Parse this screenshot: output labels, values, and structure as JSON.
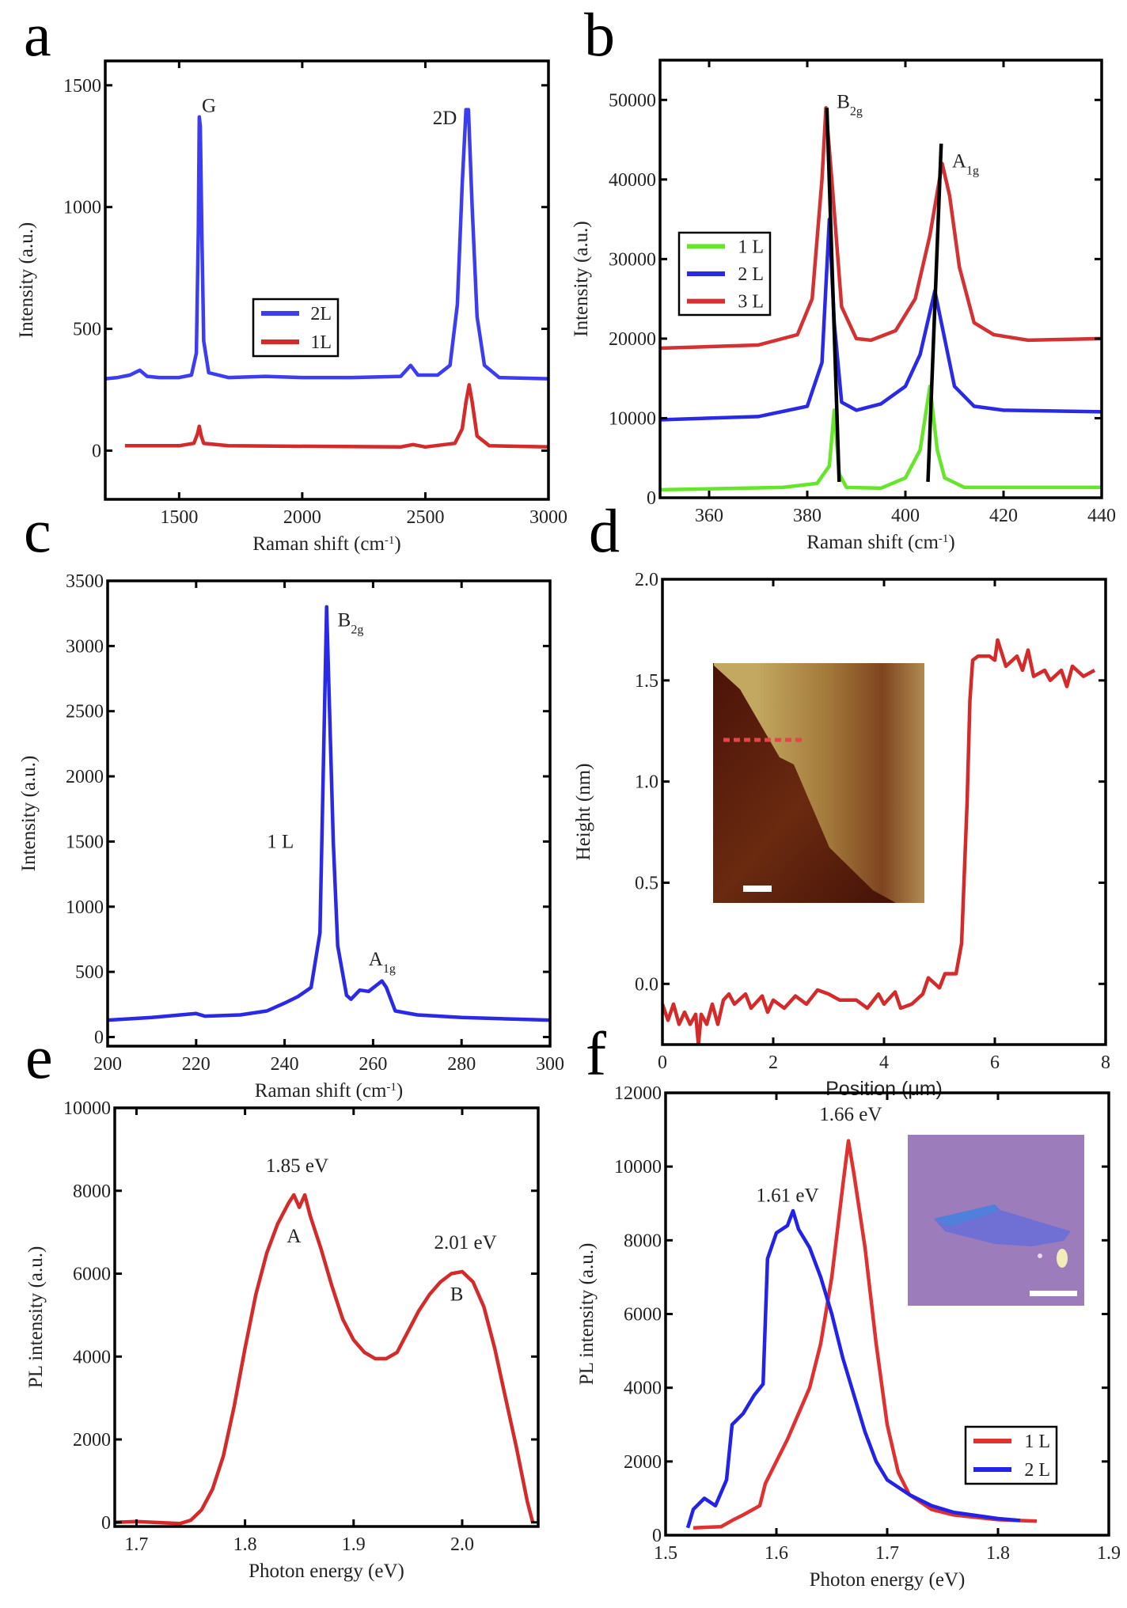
{
  "chart_data": [
    {
      "panel_label": "a",
      "type": "line",
      "xlabel": {
        "text": "Raman shift (cm",
        "sup": "-1",
        "tail": ")"
      },
      "ylabel": "Intensity (a.u.)",
      "xlim": [
        1200,
        3000
      ],
      "ylim": [
        -200,
        1600
      ],
      "xticks": [
        1500,
        2000,
        2500,
        3000
      ],
      "xtick_labels": [
        "1500",
        "2000",
        "2500",
        "3000"
      ],
      "yticks": [
        0,
        500,
        1000,
        1500
      ],
      "ytick_labels": [
        "0",
        "500",
        "1000",
        "1500"
      ],
      "grid": false,
      "legend": "center",
      "series": [
        {
          "name": "2L",
          "color": "#3c3cf0",
          "x": [
            1200,
            1250,
            1300,
            1340,
            1370,
            1420,
            1500,
            1550,
            1570,
            1578,
            1582,
            1586,
            1592,
            1600,
            1620,
            1700,
            1850,
            2000,
            2200,
            2400,
            2440,
            2470,
            2550,
            2600,
            2630,
            2650,
            2665,
            2675,
            2690,
            2710,
            2740,
            2800,
            3000
          ],
          "y": [
            295,
            300,
            310,
            330,
            305,
            300,
            300,
            310,
            400,
            900,
            1370,
            1330,
            900,
            450,
            320,
            300,
            305,
            300,
            300,
            305,
            350,
            310,
            310,
            350,
            600,
            1100,
            1400,
            1400,
            1000,
            550,
            350,
            300,
            295
          ]
        },
        {
          "name": "1L",
          "color": "#d42a2a",
          "x": [
            1280,
            1500,
            1560,
            1575,
            1582,
            1590,
            1600,
            1700,
            2400,
            2450,
            2500,
            2620,
            2650,
            2665,
            2678,
            2690,
            2710,
            2760,
            3000
          ],
          "y": [
            20,
            20,
            30,
            70,
            100,
            60,
            30,
            20,
            15,
            25,
            15,
            30,
            90,
            200,
            270,
            200,
            60,
            20,
            15
          ]
        }
      ],
      "annotations": [
        {
          "text": "G",
          "sub": "",
          "x": 1592,
          "y": 1390,
          "anchor": "start"
        },
        {
          "text": "2D",
          "sub": "",
          "x": 2530,
          "y": 1340,
          "anchor": "start"
        }
      ]
    },
    {
      "panel_label": "b",
      "type": "line",
      "xlabel": {
        "text": "Raman shift (cm",
        "sup": "-1",
        "tail": ")"
      },
      "ylabel": "Intensity (a.u.)",
      "xlim": [
        350,
        440
      ],
      "ylim": [
        0,
        55000
      ],
      "xticks": [
        360,
        380,
        400,
        420,
        440
      ],
      "xtick_labels": [
        "360",
        "380",
        "400",
        "420",
        "440"
      ],
      "yticks": [
        0,
        10000,
        20000,
        30000,
        40000,
        50000
      ],
      "ytick_labels": [
        "0",
        "10000",
        "20000",
        "30000",
        "40000",
        "50000"
      ],
      "grid": false,
      "legend": "left",
      "series": [
        {
          "name": "1 L",
          "color": "#66e62a",
          "x": [
            350,
            375,
            382,
            384.5,
            385.5,
            386.5,
            388,
            395,
            400,
            403,
            405,
            406.5,
            408,
            412,
            440
          ],
          "y": [
            1000,
            1300,
            1800,
            4000,
            11000,
            3000,
            1300,
            1200,
            2500,
            6000,
            14000,
            6000,
            2500,
            1300,
            1300
          ]
        },
        {
          "name": "2 L",
          "color": "#2a2ae6",
          "x": [
            350,
            370,
            380,
            383,
            384.5,
            385.5,
            387,
            390,
            395,
            400,
            403,
            406,
            408,
            410,
            414,
            420,
            440
          ],
          "y": [
            9800,
            10200,
            11500,
            17000,
            35000,
            22000,
            12000,
            11000,
            11800,
            14000,
            18000,
            26000,
            20000,
            14000,
            11500,
            11000,
            10800
          ]
        },
        {
          "name": "3 L",
          "color": "#d43232",
          "x": [
            350,
            370,
            378,
            381,
            383,
            383.8,
            385,
            387,
            390,
            393,
            398,
            402,
            405,
            407.5,
            409,
            411,
            414,
            418,
            425,
            440
          ],
          "y": [
            18800,
            19200,
            20500,
            25000,
            40000,
            49000,
            40000,
            24000,
            20000,
            19800,
            21000,
            25000,
            33000,
            42000,
            38000,
            29000,
            22000,
            20500,
            19800,
            20000
          ]
        }
      ],
      "guide_lines": [
        {
          "color": "#000000",
          "x": [
            384,
            386.5
          ],
          "y": [
            49000,
            2000
          ]
        },
        {
          "color": "#000000",
          "x": [
            407.3,
            404.6
          ],
          "y": [
            44500,
            2000
          ]
        }
      ],
      "annotations": [
        {
          "text": "B",
          "sub": "2g",
          "x": 386,
          "y": 49000,
          "anchor": "start"
        },
        {
          "text": "A",
          "sub": "1g",
          "x": 409.5,
          "y": 41500,
          "anchor": "start"
        }
      ]
    },
    {
      "panel_label": "c",
      "type": "line",
      "xlabel": {
        "text": "Raman shift (cm",
        "sup": "-1",
        "tail": ")"
      },
      "ylabel": "Intensity (a.u.)",
      "xlim": [
        200,
        300
      ],
      "ylim": [
        -70,
        3500
      ],
      "xticks": [
        200,
        220,
        240,
        260,
        280,
        300
      ],
      "xtick_labels": [
        "200",
        "220",
        "240",
        "260",
        "280",
        "300"
      ],
      "yticks": [
        0,
        500,
        1000,
        1500,
        2000,
        2500,
        3000,
        3500
      ],
      "ytick_labels": [
        "0",
        "500",
        "1000",
        "1500",
        "2000",
        "2500",
        "3000",
        "3500"
      ],
      "grid": false,
      "series": [
        {
          "color": "#2a2ae6",
          "x": [
            200,
            210,
            220,
            222,
            230,
            236,
            240,
            243,
            246,
            248,
            249.5,
            251,
            252,
            254,
            255,
            257,
            259,
            262,
            263,
            265,
            270,
            280,
            300
          ],
          "y": [
            130,
            150,
            180,
            160,
            170,
            200,
            260,
            310,
            380,
            800,
            3300,
            1500,
            700,
            320,
            290,
            360,
            350,
            430,
            380,
            200,
            170,
            150,
            130
          ]
        }
      ],
      "annotations": [
        {
          "text": "B",
          "sub": "2g",
          "x": 252,
          "y": 3150,
          "anchor": "start"
        },
        {
          "text": "1 L",
          "sub": "",
          "x": 236,
          "y": 1450,
          "anchor": "start"
        },
        {
          "text": "A",
          "sub": "1g",
          "x": 259,
          "y": 550,
          "anchor": "start"
        }
      ]
    },
    {
      "panel_label": "d",
      "type": "line",
      "xlabel": {
        "text": "Position (μm)",
        "sup": "",
        "tail": ""
      },
      "ylabel": "Height (nm)",
      "xlim": [
        0,
        8
      ],
      "ylim": [
        -0.3,
        2.0
      ],
      "xticks": [
        0,
        2,
        4,
        6,
        8
      ],
      "xtick_labels": [
        "0",
        "2",
        "4",
        "6",
        "8"
      ],
      "yticks": [
        0,
        0.5,
        1.0,
        1.5,
        2.0
      ],
      "ytick_labels": [
        "0.0",
        "0.5",
        "1.0",
        "1.5",
        "2.0"
      ],
      "grid": false,
      "inset": "afm-height-image",
      "series": [
        {
          "color": "#d42a2a",
          "x": [
            0,
            0.1,
            0.2,
            0.3,
            0.4,
            0.5,
            0.6,
            0.65,
            0.7,
            0.8,
            0.9,
            1.0,
            1.1,
            1.2,
            1.3,
            1.5,
            1.6,
            1.8,
            1.9,
            2.0,
            2.2,
            2.4,
            2.6,
            2.8,
            3.0,
            3.2,
            3.5,
            3.7,
            3.9,
            4.0,
            4.2,
            4.3,
            4.5,
            4.7,
            4.8,
            5.0,
            5.1,
            5.3,
            5.4,
            5.5,
            5.55,
            5.6,
            5.7,
            5.9,
            6.0,
            6.05,
            6.2,
            6.4,
            6.5,
            6.6,
            6.7,
            6.9,
            7.0,
            7.2,
            7.3,
            7.4,
            7.6,
            7.8
          ],
          "y": [
            -0.1,
            -0.18,
            -0.1,
            -0.2,
            -0.14,
            -0.2,
            -0.15,
            -0.3,
            -0.15,
            -0.2,
            -0.1,
            -0.2,
            -0.08,
            -0.05,
            -0.1,
            -0.05,
            -0.12,
            -0.06,
            -0.14,
            -0.08,
            -0.12,
            -0.06,
            -0.1,
            -0.03,
            -0.05,
            -0.08,
            -0.08,
            -0.12,
            -0.05,
            -0.1,
            -0.04,
            -0.12,
            -0.1,
            -0.05,
            0.03,
            -0.02,
            0.05,
            0.05,
            0.2,
            0.9,
            1.4,
            1.6,
            1.62,
            1.62,
            1.6,
            1.7,
            1.57,
            1.62,
            1.55,
            1.65,
            1.52,
            1.55,
            1.5,
            1.55,
            1.47,
            1.57,
            1.52,
            1.55
          ]
        }
      ],
      "annotations": []
    },
    {
      "panel_label": "e",
      "type": "line",
      "xlabel": {
        "text": "Photon energy (eV)",
        "sup": "",
        "tail": ""
      },
      "ylabel": "PL intensity (a.u.)",
      "xlim": [
        1.68,
        2.07
      ],
      "ylim": [
        -100,
        10000
      ],
      "xticks": [
        1.7,
        1.8,
        1.9,
        2.0
      ],
      "xtick_labels": [
        "1.7",
        "1.8",
        "1.9",
        "2.0"
      ],
      "yticks": [
        0,
        2000,
        4000,
        6000,
        8000,
        10000
      ],
      "ytick_labels": [
        "0",
        "2000",
        "4000",
        "6000",
        "8000",
        "10000"
      ],
      "grid": false,
      "series": [
        {
          "color": "#d42a2a",
          "x": [
            1.68,
            1.7,
            1.74,
            1.75,
            1.76,
            1.77,
            1.78,
            1.79,
            1.8,
            1.81,
            1.82,
            1.83,
            1.84,
            1.845,
            1.85,
            1.855,
            1.86,
            1.87,
            1.88,
            1.89,
            1.9,
            1.91,
            1.92,
            1.93,
            1.94,
            1.95,
            1.96,
            1.97,
            1.98,
            1.99,
            2.0,
            2.01,
            2.02,
            2.03,
            2.04,
            2.05,
            2.06,
            2.065
          ],
          "y": [
            0,
            20,
            -30,
            50,
            300,
            800,
            1600,
            2800,
            4200,
            5500,
            6500,
            7200,
            7700,
            7900,
            7600,
            7900,
            7400,
            6600,
            5700,
            4900,
            4400,
            4100,
            3950,
            3950,
            4100,
            4600,
            5100,
            5500,
            5800,
            6000,
            6050,
            5800,
            5200,
            4200,
            3000,
            1800,
            500,
            0
          ]
        }
      ],
      "annotations": [
        {
          "text": "1.85 eV",
          "sub": "",
          "x": 1.848,
          "y": 8450,
          "anchor": "middle"
        },
        {
          "text": "A",
          "sub": "",
          "x": 1.845,
          "y": 6750,
          "anchor": "middle"
        },
        {
          "text": "2.01 eV",
          "sub": "",
          "x": 2.003,
          "y": 6600,
          "anchor": "middle"
        },
        {
          "text": "B",
          "sub": "",
          "x": 1.995,
          "y": 5350,
          "anchor": "middle"
        }
      ]
    },
    {
      "panel_label": "f",
      "type": "line",
      "xlabel": {
        "text": "Photon energy (eV)",
        "sup": "",
        "tail": ""
      },
      "ylabel": "PL intensity (a.u.)",
      "xlim": [
        1.5,
        1.9
      ],
      "ylim": [
        0,
        12000
      ],
      "xticks": [
        1.5,
        1.6,
        1.7,
        1.8,
        1.9
      ],
      "xtick_labels": [
        "1.5",
        "1.6",
        "1.7",
        "1.8",
        "1.9"
      ],
      "yticks": [
        0,
        2000,
        4000,
        6000,
        8000,
        10000,
        12000
      ],
      "ytick_labels": [
        "0",
        "2000",
        "4000",
        "6000",
        "8000",
        "10000",
        "12000"
      ],
      "grid": false,
      "legend": "bottom-right",
      "inset": "optical-image",
      "series": [
        {
          "name": "1 L",
          "color": "#e03030",
          "x": [
            1.525,
            1.55,
            1.56,
            1.57,
            1.585,
            1.59,
            1.6,
            1.61,
            1.62,
            1.63,
            1.64,
            1.65,
            1.66,
            1.665,
            1.67,
            1.68,
            1.69,
            1.7,
            1.71,
            1.72,
            1.74,
            1.76,
            1.8,
            1.835
          ],
          "y": [
            200,
            230,
            400,
            550,
            800,
            1400,
            2000,
            2600,
            3300,
            4000,
            5200,
            7000,
            9500,
            10700,
            9800,
            7800,
            5200,
            3000,
            1700,
            1100,
            700,
            550,
            420,
            380
          ]
        },
        {
          "name": "2 L",
          "color": "#2222e8",
          "x": [
            1.52,
            1.525,
            1.535,
            1.545,
            1.555,
            1.56,
            1.57,
            1.58,
            1.588,
            1.592,
            1.6,
            1.61,
            1.615,
            1.62,
            1.63,
            1.64,
            1.65,
            1.66,
            1.67,
            1.68,
            1.69,
            1.7,
            1.72,
            1.74,
            1.76,
            1.8,
            1.82
          ],
          "y": [
            200,
            700,
            1000,
            800,
            1500,
            3000,
            3300,
            3800,
            4100,
            7500,
            8200,
            8400,
            8800,
            8300,
            7800,
            7000,
            6000,
            4800,
            3800,
            2800,
            2000,
            1500,
            1100,
            800,
            620,
            450,
            400
          ]
        }
      ],
      "annotations": [
        {
          "text": "1.61 eV",
          "sub": "",
          "x": 1.61,
          "y": 9050,
          "anchor": "middle"
        },
        {
          "text": "1.66 eV",
          "sub": "",
          "x": 1.667,
          "y": 11250,
          "anchor": "middle"
        }
      ]
    }
  ]
}
